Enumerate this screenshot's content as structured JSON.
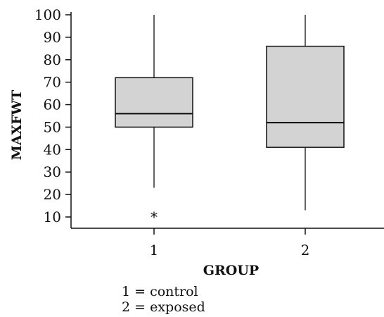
{
  "chart_data": {
    "type": "box",
    "xlabel": "GROUP",
    "ylabel": "MAXFWT",
    "ylim": [
      5,
      100
    ],
    "yticks": [
      10,
      20,
      30,
      40,
      50,
      60,
      70,
      80,
      90,
      100
    ],
    "categories": [
      "1",
      "2"
    ],
    "boxes": [
      {
        "group": "1",
        "whisker_low": 23,
        "q1": 50,
        "median": 56,
        "q3": 72,
        "whisker_high": 100,
        "outliers": [
          11
        ]
      },
      {
        "group": "2",
        "whisker_low": 13,
        "q1": 41,
        "median": 52,
        "q3": 86,
        "whisker_high": 100,
        "outliers": []
      }
    ],
    "box_fill": "#d3d3d3",
    "line_color": "#111111",
    "outlier_symbol": "*"
  },
  "legend": {
    "line1": "1 = control",
    "line2": "2 = exposed"
  }
}
